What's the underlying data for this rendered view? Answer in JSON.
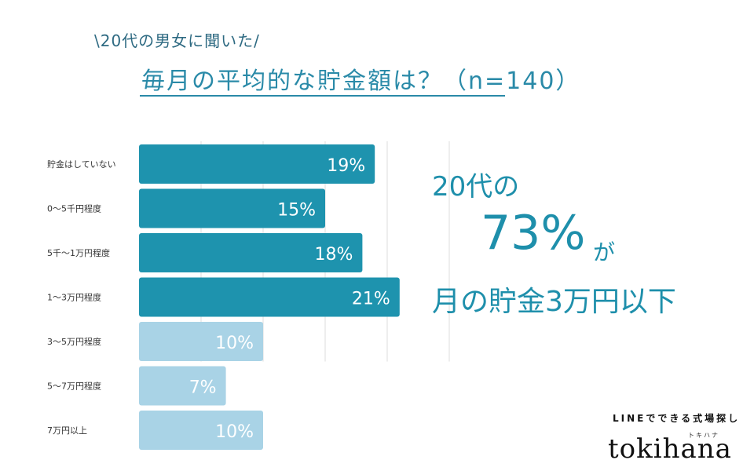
{
  "subtitle": "\\20代の男女に聞いた/",
  "title": "毎月の平均的な貯金額は？（n=140）",
  "chart_data": {
    "type": "bar",
    "orientation": "horizontal",
    "unit": "%",
    "xlim": [
      0,
      25
    ],
    "categories": [
      "貯金はしていない",
      "0〜5千円程度",
      "5千〜1万円程度",
      "1〜3万円程度",
      "3〜5万円程度",
      "5〜7万円程度",
      "7万円以上"
    ],
    "values": [
      19,
      15,
      18,
      21,
      10,
      7,
      10
    ],
    "labels": [
      "19%",
      "15%",
      "18%",
      "21%",
      "10%",
      "7%",
      "10%"
    ],
    "highlight_count": 4,
    "colors": {
      "highlight": "#1e93ae",
      "other": "#a9d3e6",
      "grid": "#dddddd"
    }
  },
  "highlight": {
    "line1": "20代の",
    "line2": "73%",
    "line3": "が",
    "line4": "月の貯金3万円以下"
  },
  "brand": {
    "tagline": "LINEでできる式場探し",
    "kana": "トキハナ",
    "name": "tokihana"
  }
}
